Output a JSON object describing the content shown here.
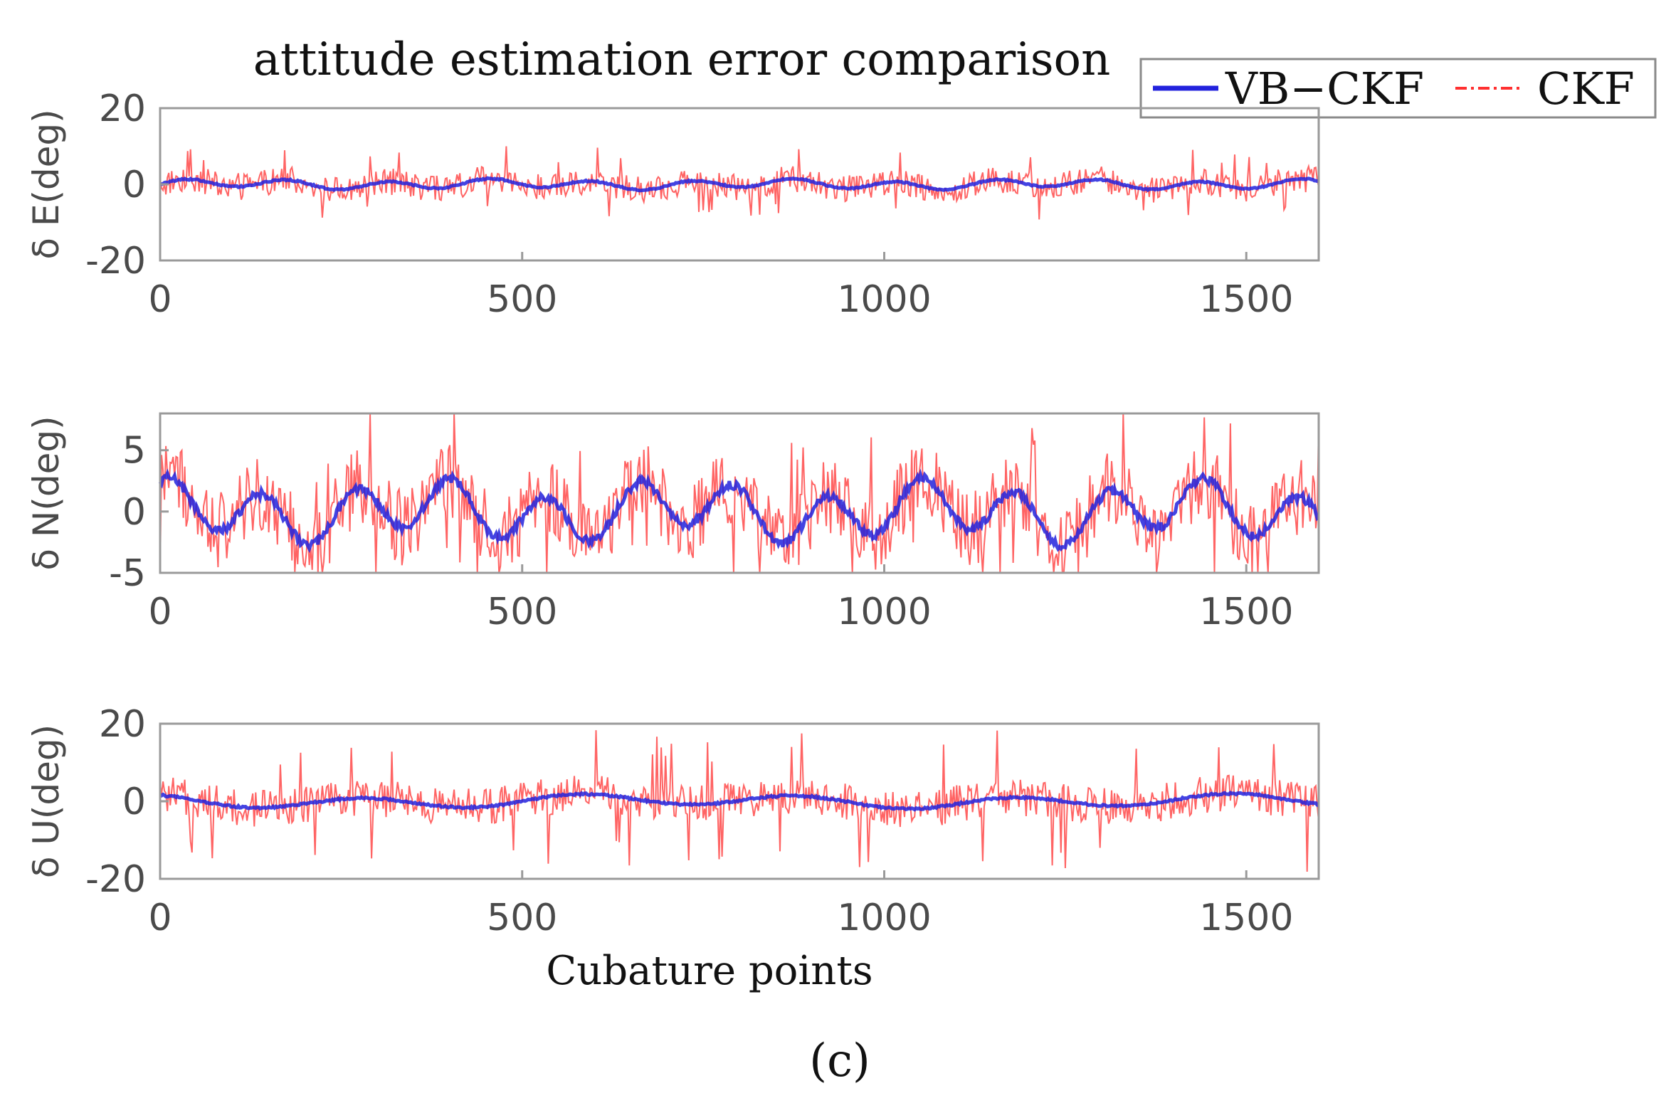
{
  "figure": {
    "panel_label": "(c)"
  },
  "colors": {
    "vbckf": "#2222dd",
    "ckf": "#ff3030",
    "axis": "#9a9a9a",
    "text": "#4a4a4a"
  },
  "chart_data": [
    {
      "type": "line",
      "title": "attitude estimation error comparison",
      "ylabel": "δ E(deg)",
      "xlabel": "",
      "xlim": [
        0,
        1600
      ],
      "ylim": [
        -20,
        20
      ],
      "xticks": [
        "0",
        "500",
        "1000",
        "1500"
      ],
      "yticks": [
        "-20",
        "0",
        "20"
      ],
      "legend": {
        "placement": "top-right",
        "entries": [
          "VB−CKF",
          "CKF"
        ]
      },
      "series": [
        {
          "name": "VB−CKF",
          "style": "solid",
          "amplitude": 1.5,
          "trend_period": 140
        },
        {
          "name": "CKF",
          "style": "dash-dot",
          "amplitude": 5,
          "spikes_to": 9
        }
      ]
    },
    {
      "type": "line",
      "ylabel": "δ N(deg)",
      "xlabel": "",
      "xlim": [
        0,
        1600
      ],
      "ylim": [
        -5,
        8
      ],
      "xticks": [
        "0",
        "500",
        "1000",
        "1500"
      ],
      "yticks": [
        "-5",
        "0",
        "5"
      ],
      "series": [
        {
          "name": "VB−CKF",
          "style": "solid",
          "amplitude": 2.8,
          "trend_period": 130
        },
        {
          "name": "CKF",
          "style": "dash-dot",
          "amplitude": 4.5,
          "spikes_to": 8
        }
      ]
    },
    {
      "type": "line",
      "ylabel": "δ U(deg)",
      "xlabel": "Cubature points",
      "xlim": [
        0,
        1600
      ],
      "ylim": [
        -20,
        20
      ],
      "xticks": [
        "0",
        "500",
        "1000",
        "1500"
      ],
      "yticks": [
        "-20",
        "0",
        "20"
      ],
      "series": [
        {
          "name": "VB−CKF",
          "style": "solid",
          "amplitude": 2,
          "trend_period": 300
        },
        {
          "name": "CKF",
          "style": "dash-dot",
          "amplitude": 7,
          "spikes_to": 18
        }
      ]
    }
  ]
}
